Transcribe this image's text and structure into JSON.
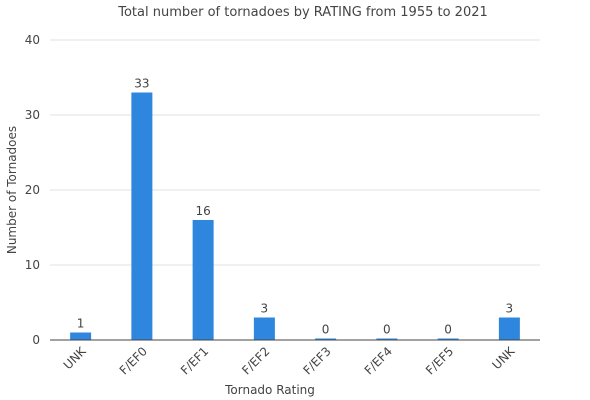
{
  "chart_data": {
    "type": "bar",
    "title": "Total number of tornadoes by RATING from 1955 to 2021",
    "xlabel": "Tornado Rating",
    "ylabel": "Number of Tornadoes",
    "categories": [
      "UNK",
      "F/EF0",
      "F/EF1",
      "F/EF2",
      "F/EF3",
      "F/EF4",
      "F/EF5",
      "UNK"
    ],
    "values": [
      1,
      33,
      16,
      3,
      0,
      0,
      0,
      3
    ],
    "ylim": [
      0,
      40
    ],
    "yticks": [
      0,
      10,
      20,
      30,
      40
    ],
    "grid": true,
    "bar_color": "#2e86de",
    "legend": "none"
  }
}
